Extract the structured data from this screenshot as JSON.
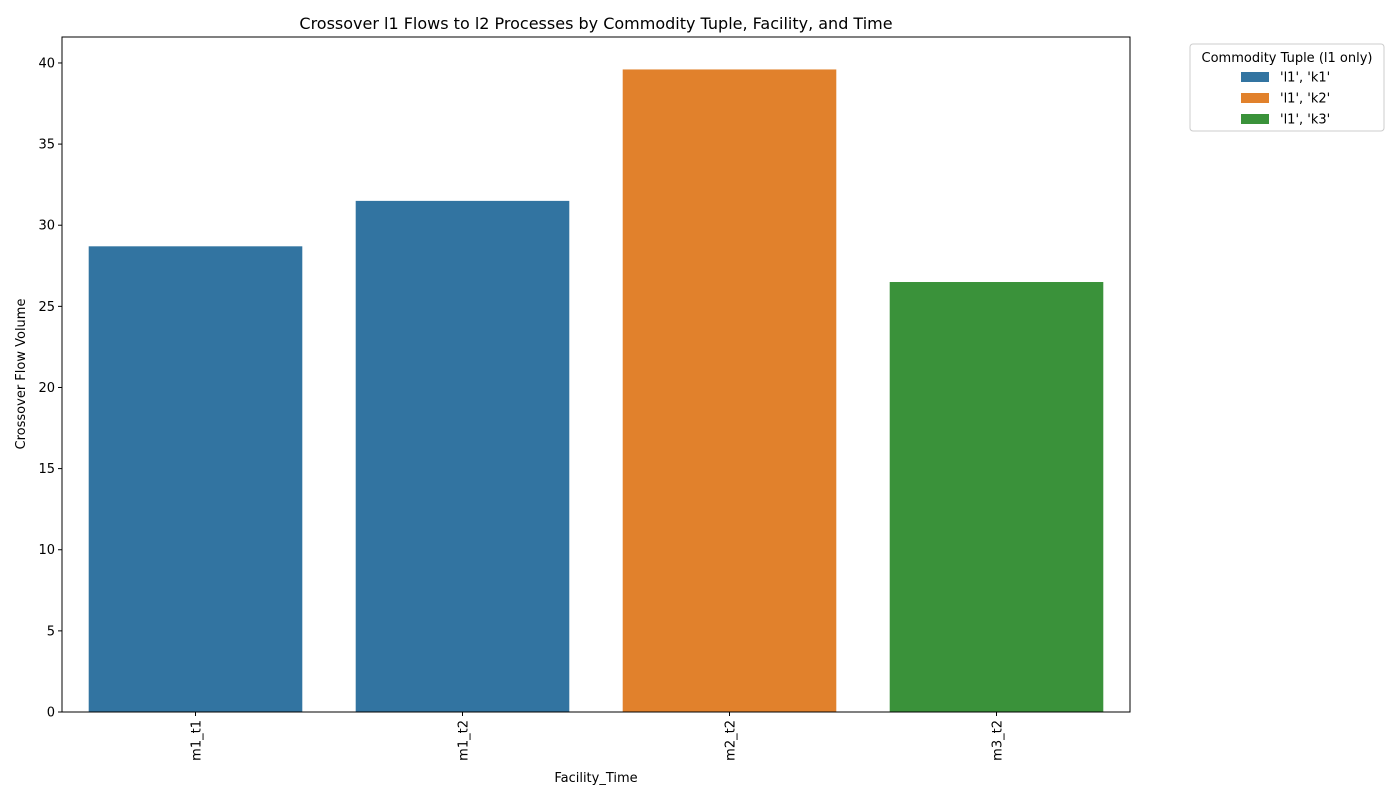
{
  "chart_data": {
    "type": "bar",
    "title": "Crossover l1 Flows to l2 Processes by Commodity Tuple, Facility, and Time",
    "xlabel": "Facility_Time",
    "ylabel": "Crossover Flow Volume",
    "categories": [
      "m1_t1",
      "m1_t2",
      "m2_t2",
      "m3_t2"
    ],
    "values": [
      28.7,
      31.5,
      39.6,
      26.5
    ],
    "bar_series": [
      "'l1', 'k1'",
      "'l1', 'k1'",
      "'l1', 'k2'",
      "'l1', 'k3'"
    ],
    "ylim": [
      0,
      41.6
    ],
    "yticks": [
      0,
      5,
      10,
      15,
      20,
      25,
      30,
      35,
      40
    ],
    "grid": false,
    "x_tick_rotation": "vertical",
    "legend": {
      "title": "Commodity Tuple (l1 only)",
      "placement": "outside-top-right",
      "entries": [
        {
          "name": "'l1', 'k1'",
          "color": "#3274a1"
        },
        {
          "name": "'l1', 'k2'",
          "color": "#e1812c"
        },
        {
          "name": "'l1', 'k3'",
          "color": "#3a923a"
        }
      ]
    }
  }
}
